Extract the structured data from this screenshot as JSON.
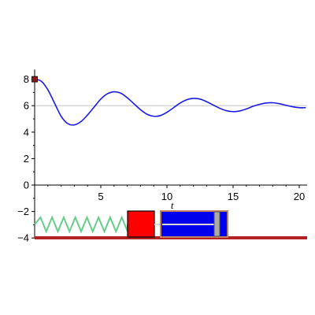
{
  "chart_data": {
    "type": "line",
    "xlabel": "t",
    "ylabel": "",
    "xlim": [
      0,
      20.5
    ],
    "ylim": [
      -4,
      8.5
    ],
    "x_ticks": [
      5,
      10,
      15,
      20
    ],
    "x_tick_labels": [
      "5",
      "10",
      "15",
      "20"
    ],
    "y_ticks": [
      8,
      6,
      4,
      2,
      0,
      -2,
      -4
    ],
    "y_tick_labels": [
      "8",
      "6",
      "4",
      "2",
      "0",
      "−2",
      "−4"
    ],
    "grid": false,
    "series": [
      {
        "color": "#1a1ae6",
        "x": [
          0,
          0.5,
          1,
          1.5,
          2,
          2.5,
          3,
          3.5,
          4,
          4.5,
          5,
          5.5,
          6,
          6.5,
          7,
          7.5,
          8,
          8.5,
          9,
          9.5,
          10,
          10.5,
          11,
          11.5,
          12,
          12.5,
          13,
          13.5,
          14,
          14.5,
          15,
          15.5,
          16,
          16.5,
          17,
          17.5,
          18,
          18.5,
          19,
          19.5,
          20,
          20.5
        ],
        "y": [
          8.0,
          7.85,
          7.2,
          6.2,
          5.2,
          4.65,
          4.55,
          4.8,
          5.3,
          5.9,
          6.5,
          6.9,
          7.05,
          6.95,
          6.6,
          6.15,
          5.7,
          5.35,
          5.2,
          5.25,
          5.5,
          5.85,
          6.2,
          6.45,
          6.55,
          6.5,
          6.3,
          6.05,
          5.8,
          5.62,
          5.55,
          5.6,
          5.75,
          5.95,
          6.1,
          6.2,
          6.22,
          6.15,
          6.03,
          5.92,
          5.85,
          5.85
        ]
      }
    ],
    "reference_lines": [
      {
        "y": 6,
        "color": "#c8c8c8"
      }
    ],
    "start_marker": {
      "x": 0,
      "y": 8,
      "color": "#8b1a1a"
    }
  },
  "animation": {
    "spring_color": "#66cc88",
    "mass_color": "#ff0000",
    "damper_color": "#0000ee",
    "damper_border_color": "#c08060",
    "ground_color": "#b22222",
    "rod_color": "#d8d8d8",
    "piston_color": "#aaaaaa"
  }
}
